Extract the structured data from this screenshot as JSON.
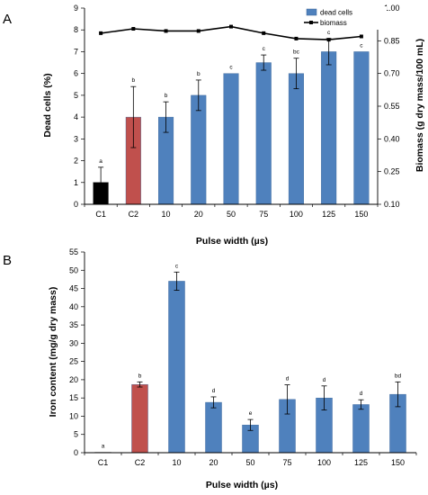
{
  "chart_data": [
    {
      "panel_label": "A",
      "type": "bar",
      "categories": [
        "C1",
        "C2",
        "10",
        "20",
        "50",
        "75",
        "100",
        "125",
        "150"
      ],
      "series": [
        {
          "name": "dead cells",
          "type": "bar",
          "axis": "left",
          "values": [
            1.0,
            4.0,
            4.0,
            5.0,
            6.0,
            6.5,
            6.0,
            7.0,
            7.0
          ],
          "errors": [
            0.7,
            1.4,
            0.7,
            0.7,
            0.0,
            0.35,
            0.7,
            0.6,
            0.0
          ],
          "letters": [
            "a",
            "b",
            "b",
            "b",
            "c",
            "c",
            "bc",
            "c",
            "c"
          ],
          "colors": [
            "#000000",
            "#c0504d",
            "#4f81bd",
            "#4f81bd",
            "#4f81bd",
            "#4f81bd",
            "#4f81bd",
            "#4f81bd",
            "#4f81bd"
          ]
        },
        {
          "name": "biomass",
          "type": "line",
          "axis": "right",
          "values": [
            0.885,
            0.905,
            0.895,
            0.895,
            0.915,
            0.885,
            0.86,
            0.855,
            0.87
          ],
          "color": "#000000"
        }
      ],
      "xlabel": "Pulse width (µs)",
      "ylabel": "Dead cells (%)",
      "ylim": [
        0,
        9
      ],
      "yticks": [
        0,
        1,
        2,
        3,
        4,
        5,
        6,
        7,
        8,
        9
      ],
      "y2label": "Biomass (g dry mass/100 mL)",
      "y2lim": [
        0.1,
        1.0
      ],
      "y2ticks": [
        "0.10",
        "0.25",
        "0.40",
        "0.55",
        "0.70",
        "0.85",
        "1.00"
      ],
      "legend_position": "top-right",
      "grid": false
    },
    {
      "panel_label": "B",
      "type": "bar",
      "categories": [
        "C1",
        "C2",
        "10",
        "20",
        "50",
        "75",
        "100",
        "125",
        "150"
      ],
      "series": [
        {
          "name": "iron content",
          "values": [
            0.1,
            18.7,
            47.0,
            13.8,
            7.6,
            14.6,
            15.0,
            13.2,
            16.0
          ],
          "errors": [
            0.0,
            0.7,
            2.5,
            1.5,
            1.5,
            4.0,
            3.3,
            1.3,
            3.4
          ],
          "letters": [
            "a",
            "b",
            "c",
            "d",
            "e",
            "d",
            "d",
            "d",
            "bd"
          ],
          "colors": [
            "#000000",
            "#c0504d",
            "#4f81bd",
            "#4f81bd",
            "#4f81bd",
            "#4f81bd",
            "#4f81bd",
            "#4f81bd",
            "#4f81bd"
          ]
        }
      ],
      "xlabel": "Pulse width (µs)",
      "ylabel": "Iron content (mg/g dry mass)",
      "ylim": [
        0,
        55
      ],
      "yticks": [
        0,
        5,
        10,
        15,
        20,
        25,
        30,
        35,
        40,
        45,
        50,
        55
      ],
      "grid": false
    }
  ]
}
